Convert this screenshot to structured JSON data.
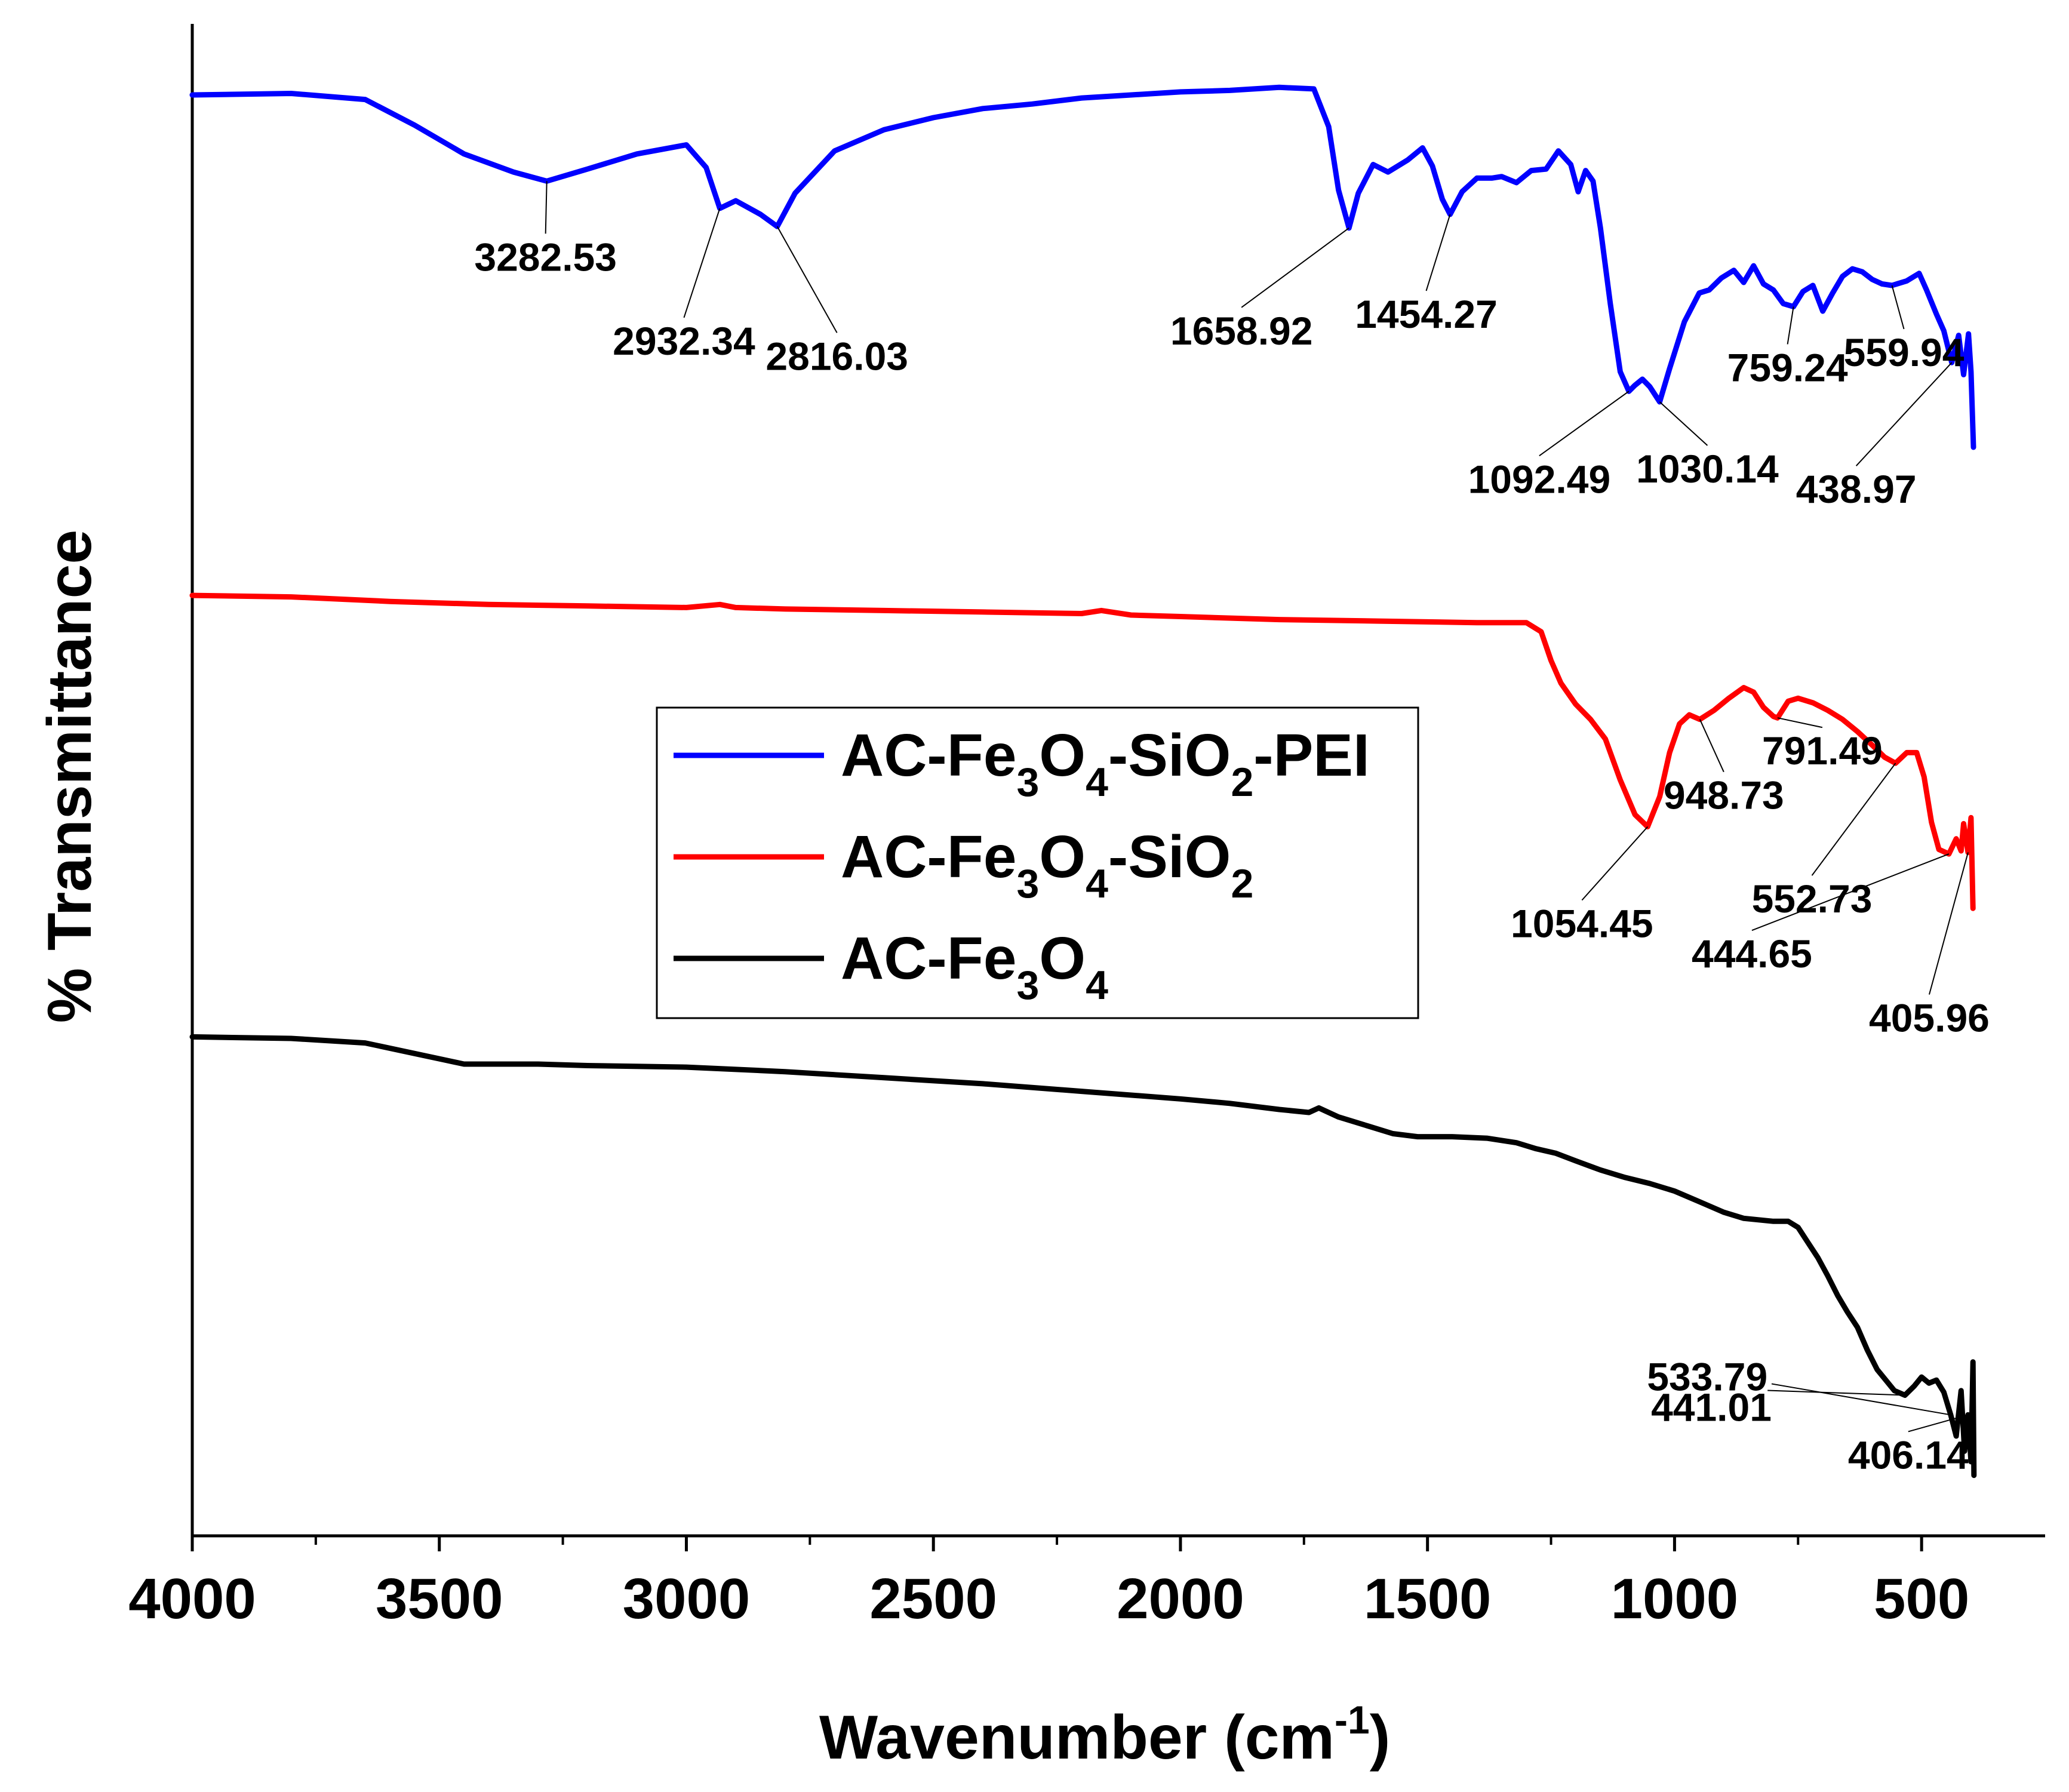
{
  "chart_data": {
    "type": "line",
    "title": "",
    "xlabel": "Wavenumber (cm",
    "xlabel_sup": "-1",
    "xlabel_close": ")",
    "ylabel": "% Transmittance",
    "xlim": [
      4000,
      250
    ],
    "x_ticks": [
      4000,
      3500,
      3000,
      2500,
      2000,
      1500,
      1000,
      500
    ],
    "x_tick_labels": [
      "4000",
      "3500",
      "3000",
      "2500",
      "2000",
      "1500",
      "1000",
      "500"
    ],
    "y_scale": "arbitrary units, 0 (bottom) to 100 (top), spectra offset vertically",
    "ylim": [
      0,
      100
    ],
    "grid": false,
    "legend_position": "center",
    "series": [
      {
        "name": "AC-Fe3O4-SiO2-PEI",
        "legend": [
          [
            "AC-Fe",
            ""
          ],
          [
            "3",
            "sub"
          ],
          [
            "O",
            ""
          ],
          [
            "4",
            "sub"
          ],
          [
            "-SiO",
            ""
          ],
          [
            "2",
            "sub"
          ],
          [
            "-PEI",
            ""
          ]
        ],
        "color": "#0000ff",
        "points": [
          [
            4000,
            95.3
          ],
          [
            3800,
            95.4
          ],
          [
            3650,
            95.0
          ],
          [
            3550,
            93.3
          ],
          [
            3450,
            91.4
          ],
          [
            3350,
            90.2
          ],
          [
            3282.53,
            89.6
          ],
          [
            3200,
            90.4
          ],
          [
            3100,
            91.4
          ],
          [
            3000,
            92.0
          ],
          [
            2960,
            90.5
          ],
          [
            2932.34,
            87.8
          ],
          [
            2900,
            88.3
          ],
          [
            2850,
            87.4
          ],
          [
            2816.03,
            86.6
          ],
          [
            2780,
            88.8
          ],
          [
            2700,
            91.6
          ],
          [
            2600,
            93.0
          ],
          [
            2500,
            93.8
          ],
          [
            2400,
            94.4
          ],
          [
            2300,
            94.7
          ],
          [
            2200,
            95.1
          ],
          [
            2100,
            95.3
          ],
          [
            2000,
            95.5
          ],
          [
            1900,
            95.6
          ],
          [
            1800,
            95.8
          ],
          [
            1730,
            95.7
          ],
          [
            1700,
            93.2
          ],
          [
            1680,
            89.0
          ],
          [
            1658.92,
            86.5
          ],
          [
            1640,
            88.8
          ],
          [
            1610,
            90.7
          ],
          [
            1580,
            90.2
          ],
          [
            1540,
            91.0
          ],
          [
            1510,
            91.8
          ],
          [
            1490,
            90.6
          ],
          [
            1470,
            88.4
          ],
          [
            1454.27,
            87.4
          ],
          [
            1430,
            88.9
          ],
          [
            1400,
            89.8
          ],
          [
            1370,
            89.8
          ],
          [
            1350,
            89.9
          ],
          [
            1320,
            89.5
          ],
          [
            1290,
            90.3
          ],
          [
            1260,
            90.4
          ],
          [
            1235,
            91.6
          ],
          [
            1210,
            90.7
          ],
          [
            1195,
            88.9
          ],
          [
            1180,
            90.3
          ],
          [
            1165,
            89.6
          ],
          [
            1150,
            86.5
          ],
          [
            1130,
            81.5
          ],
          [
            1110,
            77.0
          ],
          [
            1092.49,
            75.7
          ],
          [
            1080,
            76.1
          ],
          [
            1065,
            76.5
          ],
          [
            1050,
            76.0
          ],
          [
            1030.14,
            75.0
          ],
          [
            1010,
            77.2
          ],
          [
            980,
            80.3
          ],
          [
            950,
            82.2
          ],
          [
            930,
            82.4
          ],
          [
            905,
            83.2
          ],
          [
            880,
            83.7
          ],
          [
            860,
            82.9
          ],
          [
            840,
            84.0
          ],
          [
            820,
            82.8
          ],
          [
            800,
            82.4
          ],
          [
            780,
            81.5
          ],
          [
            759.24,
            81.3
          ],
          [
            740,
            82.3
          ],
          [
            720,
            82.7
          ],
          [
            700,
            81.0
          ],
          [
            680,
            82.2
          ],
          [
            660,
            83.3
          ],
          [
            640,
            83.8
          ],
          [
            620,
            83.6
          ],
          [
            600,
            83.1
          ],
          [
            580,
            82.8
          ],
          [
            559.94,
            82.7
          ],
          [
            530,
            83.0
          ],
          [
            505,
            83.5
          ],
          [
            490,
            82.4
          ],
          [
            470,
            80.8
          ],
          [
            455,
            79.7
          ],
          [
            438.97,
            77.6
          ],
          [
            425,
            79.4
          ],
          [
            415,
            76.8
          ],
          [
            405,
            79.5
          ],
          [
            400,
            77.0
          ],
          [
            395,
            72.0
          ]
        ],
        "annotations": [
          {
            "label": "3282.53",
            "x": 3282.53
          },
          {
            "label": "2932.34",
            "x": 2932.34
          },
          {
            "label": "2816.03",
            "x": 2816.03
          },
          {
            "label": "1658.92",
            "x": 1658.92
          },
          {
            "label": "1454.27",
            "x": 1454.27
          },
          {
            "label": "1092.49",
            "x": 1092.49
          },
          {
            "label": "1030.14",
            "x": 1030.14
          },
          {
            "label": "759.24",
            "x": 759.24
          },
          {
            "label": "559.94",
            "x": 559.94
          },
          {
            "label": "438.97",
            "x": 438.97
          }
        ]
      },
      {
        "name": "AC-Fe3O4-SiO2",
        "legend": [
          [
            "AC-Fe",
            ""
          ],
          [
            "3",
            "sub"
          ],
          [
            "O",
            ""
          ],
          [
            "4",
            "sub"
          ],
          [
            "-SiO",
            ""
          ],
          [
            "2",
            "sub"
          ]
        ],
        "color": "#ff0000",
        "points": [
          [
            4000,
            62.2
          ],
          [
            3800,
            62.1
          ],
          [
            3600,
            61.8
          ],
          [
            3400,
            61.6
          ],
          [
            3200,
            61.5
          ],
          [
            3000,
            61.4
          ],
          [
            2932,
            61.6
          ],
          [
            2900,
            61.4
          ],
          [
            2800,
            61.3
          ],
          [
            2600,
            61.2
          ],
          [
            2400,
            61.1
          ],
          [
            2200,
            61.0
          ],
          [
            2160,
            61.2
          ],
          [
            2100,
            60.9
          ],
          [
            2000,
            60.8
          ],
          [
            1800,
            60.6
          ],
          [
            1600,
            60.5
          ],
          [
            1400,
            60.4
          ],
          [
            1300,
            60.4
          ],
          [
            1270,
            59.8
          ],
          [
            1250,
            57.9
          ],
          [
            1230,
            56.4
          ],
          [
            1200,
            55.0
          ],
          [
            1170,
            54.0
          ],
          [
            1140,
            52.7
          ],
          [
            1110,
            50.0
          ],
          [
            1080,
            47.7
          ],
          [
            1054.45,
            46.9
          ],
          [
            1030,
            48.9
          ],
          [
            1010,
            51.8
          ],
          [
            990,
            53.7
          ],
          [
            970,
            54.3
          ],
          [
            948.73,
            54.0
          ],
          [
            920,
            54.6
          ],
          [
            890,
            55.4
          ],
          [
            860,
            56.1
          ],
          [
            840,
            55.8
          ],
          [
            820,
            54.8
          ],
          [
            800,
            54.2
          ],
          [
            791.49,
            54.1
          ],
          [
            770,
            55.2
          ],
          [
            750,
            55.4
          ],
          [
            720,
            55.1
          ],
          [
            690,
            54.6
          ],
          [
            660,
            54.0
          ],
          [
            630,
            53.2
          ],
          [
            600,
            52.3
          ],
          [
            575,
            51.5
          ],
          [
            552.73,
            51.1
          ],
          [
            530,
            51.8
          ],
          [
            510,
            51.8
          ],
          [
            495,
            50.2
          ],
          [
            480,
            47.2
          ],
          [
            465,
            45.4
          ],
          [
            444.65,
            45.1
          ],
          [
            430,
            46.1
          ],
          [
            420,
            45.3
          ],
          [
            415,
            47.1
          ],
          [
            405.96,
            45.2
          ],
          [
            400,
            47.5
          ],
          [
            396,
            41.5
          ]
        ],
        "annotations": [
          {
            "label": "1054.45",
            "x": 1054.45
          },
          {
            "label": "948.73",
            "x": 948.73
          },
          {
            "label": "791.49",
            "x": 791.49
          },
          {
            "label": "552.73",
            "x": 552.73
          },
          {
            "label": "444.65",
            "x": 444.65
          },
          {
            "label": "405.96",
            "x": 405.96
          }
        ]
      },
      {
        "name": "AC-Fe3O4",
        "legend": [
          [
            "AC-Fe",
            ""
          ],
          [
            "3",
            "sub"
          ],
          [
            "O",
            ""
          ],
          [
            "4",
            "sub"
          ]
        ],
        "color": "#000000",
        "points": [
          [
            4000,
            33.0
          ],
          [
            3800,
            32.9
          ],
          [
            3650,
            32.6
          ],
          [
            3550,
            31.9
          ],
          [
            3450,
            31.2
          ],
          [
            3400,
            31.2
          ],
          [
            3300,
            31.2
          ],
          [
            3200,
            31.1
          ],
          [
            3000,
            31.0
          ],
          [
            2800,
            30.7
          ],
          [
            2600,
            30.3
          ],
          [
            2400,
            29.9
          ],
          [
            2200,
            29.4
          ],
          [
            2000,
            28.9
          ],
          [
            1900,
            28.6
          ],
          [
            1800,
            28.2
          ],
          [
            1740,
            28.0
          ],
          [
            1720,
            28.3
          ],
          [
            1680,
            27.7
          ],
          [
            1620,
            27.1
          ],
          [
            1570,
            26.6
          ],
          [
            1520,
            26.4
          ],
          [
            1450,
            26.4
          ],
          [
            1380,
            26.3
          ],
          [
            1320,
            26.0
          ],
          [
            1280,
            25.6
          ],
          [
            1240,
            25.3
          ],
          [
            1200,
            24.8
          ],
          [
            1150,
            24.2
          ],
          [
            1100,
            23.7
          ],
          [
            1050,
            23.3
          ],
          [
            1000,
            22.8
          ],
          [
            950,
            22.1
          ],
          [
            900,
            21.4
          ],
          [
            860,
            21.0
          ],
          [
            800,
            20.8
          ],
          [
            770,
            20.8
          ],
          [
            750,
            20.4
          ],
          [
            730,
            19.4
          ],
          [
            710,
            18.4
          ],
          [
            690,
            17.2
          ],
          [
            670,
            15.9
          ],
          [
            650,
            14.8
          ],
          [
            630,
            13.8
          ],
          [
            610,
            12.3
          ],
          [
            590,
            11.0
          ],
          [
            570,
            10.2
          ],
          [
            555,
            9.6
          ],
          [
            533.79,
            9.3
          ],
          [
            515,
            9.9
          ],
          [
            500,
            10.5
          ],
          [
            485,
            10.1
          ],
          [
            470,
            10.3
          ],
          [
            455,
            9.5
          ],
          [
            441.01,
            8.0
          ],
          [
            430,
            6.6
          ],
          [
            420,
            9.6
          ],
          [
            413,
            5.6
          ],
          [
            406.14,
            8.0
          ],
          [
            400,
            4.9
          ],
          [
            396,
            11.5
          ],
          [
            394,
            4.0
          ]
        ],
        "annotations": [
          {
            "label": "533.79",
            "x": 533.79
          },
          {
            "label": "441.01",
            "x": 441.01
          },
          {
            "label": "406.14",
            "x": 406.14
          }
        ]
      }
    ]
  }
}
